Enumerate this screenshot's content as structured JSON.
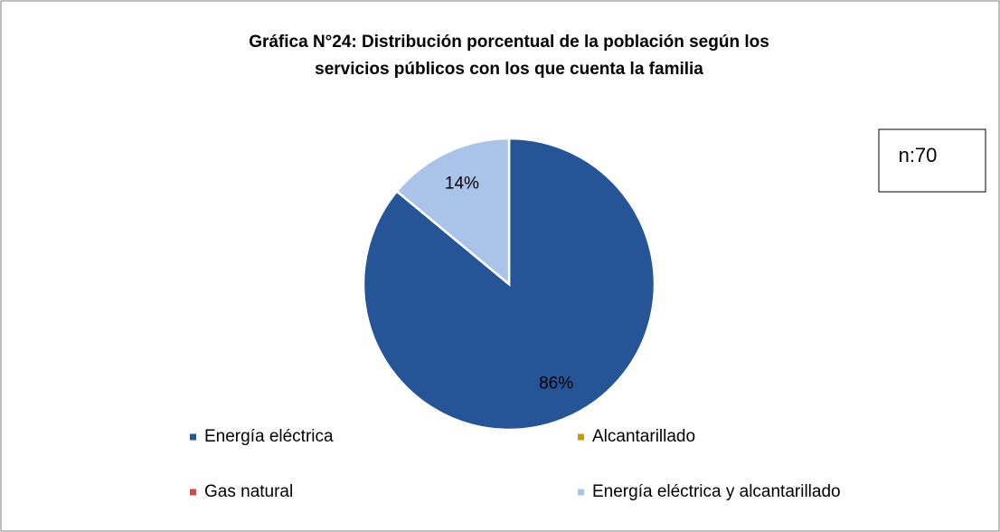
{
  "chart_data": {
    "type": "pie",
    "title": [
      "Gráfica N°24: Distribución porcentual de la población según los",
      "servicios públicos con los que cuenta la familia"
    ],
    "annotation": "n:70",
    "categories": [
      "Energía eléctrica",
      "Alcantarillado",
      "Gas natural",
      "Energía eléctrica y alcantarillado"
    ],
    "values": [
      86,
      0,
      0,
      14
    ],
    "value_labels": [
      "86%",
      null,
      null,
      "14%"
    ],
    "colors": [
      "#255597",
      "#c89a00",
      "#c0504d",
      "#a9c4e8"
    ],
    "legend": "bottom"
  }
}
